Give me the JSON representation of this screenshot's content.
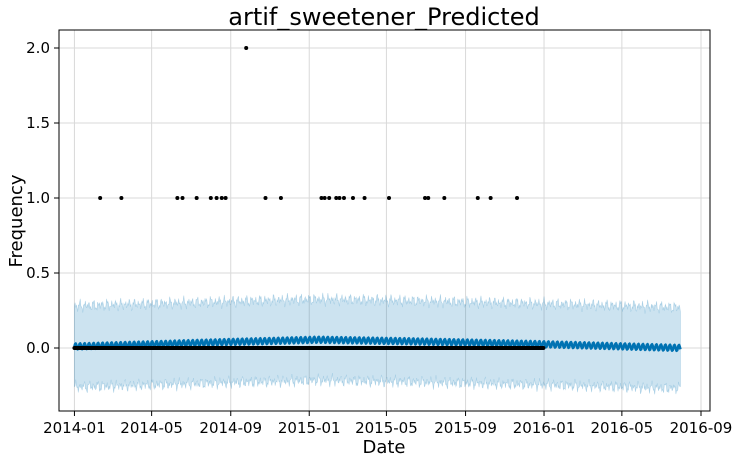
{
  "chart_data": {
    "type": "line",
    "title": "artif_sweetener_Predicted",
    "xlabel": "Date",
    "ylabel": "Frequency",
    "x_range": [
      "2013-12-08",
      "2016-09-15"
    ],
    "ylim": [
      -0.42,
      2.12
    ],
    "x_ticks": [
      "2014-01",
      "2014-05",
      "2014-09",
      "2015-01",
      "2015-05",
      "2015-09",
      "2016-01",
      "2016-05",
      "2016-09"
    ],
    "y_ticks": [
      0.0,
      0.5,
      1.0,
      1.5,
      2.0
    ],
    "y_tick_labels": [
      "0.0",
      "0.5",
      "1.0",
      "1.5",
      "2.0"
    ],
    "grid": true,
    "legend": "none",
    "history_range": [
      "2014-01-01",
      "2015-12-31"
    ],
    "forecast_range": [
      "2014-01-01",
      "2016-07-31"
    ],
    "forecast_trend": {
      "dates": [
        "2014-01-01",
        "2014-09-01",
        "2015-01-15",
        "2015-06-01",
        "2016-01-01",
        "2016-07-31"
      ],
      "values": [
        0.01,
        0.04,
        0.055,
        0.045,
        0.025,
        0.0
      ]
    },
    "weekly_amplitude": 0.02,
    "uncertainty_halfwidth": 0.27,
    "observed_ones": [
      "2014-02-10",
      "2014-03-15",
      "2014-06-10",
      "2014-06-18",
      "2014-07-10",
      "2014-08-01",
      "2014-08-10",
      "2014-08-18",
      "2014-08-24",
      "2014-10-25",
      "2014-11-18",
      "2015-01-20",
      "2015-01-25",
      "2015-02-01",
      "2015-02-12",
      "2015-02-17",
      "2015-02-24",
      "2015-03-10",
      "2015-03-28",
      "2015-05-05",
      "2015-06-30",
      "2015-07-05",
      "2015-07-30",
      "2015-09-20",
      "2015-10-10",
      "2015-11-20"
    ],
    "observed_twos": [
      "2014-09-25"
    ],
    "colors": {
      "forecast_line": "#0072b2",
      "uncertainty_band": "#0072b2",
      "observed_point": "#000000",
      "grid": "#d9d9d9",
      "axis": "#000000"
    }
  }
}
